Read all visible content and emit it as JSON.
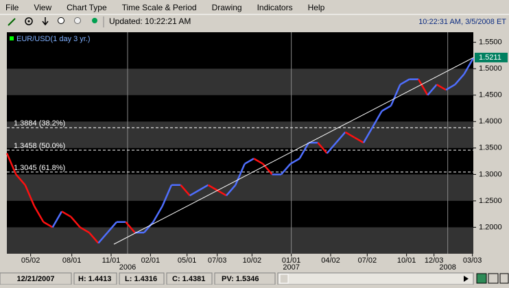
{
  "menu": [
    "File",
    "View",
    "Chart Type",
    "Time Scale & Period",
    "Drawing",
    "Indicators",
    "Help"
  ],
  "toolbar": {
    "updated": "Updated: 10:22:21 AM",
    "clock": "10:22:31 AM, 3/5/2008 ET"
  },
  "chart_data": {
    "type": "line",
    "legend": "EUR/USD(1 day 3 yr.)",
    "series": [
      {
        "name": "EUR/USD",
        "up_color": "#4f6fff",
        "down_color": "#ff1010",
        "values": [
          1.34,
          1.3,
          1.28,
          1.24,
          1.21,
          1.2,
          1.23,
          1.22,
          1.2,
          1.19,
          1.17,
          1.19,
          1.21,
          1.21,
          1.19,
          1.19,
          1.21,
          1.24,
          1.28,
          1.28,
          1.26,
          1.27,
          1.28,
          1.27,
          1.26,
          1.28,
          1.32,
          1.33,
          1.32,
          1.3,
          1.3,
          1.32,
          1.33,
          1.36,
          1.36,
          1.34,
          1.36,
          1.38,
          1.37,
          1.36,
          1.39,
          1.42,
          1.43,
          1.47,
          1.48,
          1.48,
          1.45,
          1.47,
          1.46,
          1.47,
          1.49,
          1.52
        ]
      }
    ],
    "xlim": [
      0,
      51
    ],
    "ylim": [
      1.15,
      1.569
    ],
    "yticks": [
      {
        "value": 1.2,
        "label": "1.2000"
      },
      {
        "value": 1.25,
        "label": "1.2500"
      },
      {
        "value": 1.3,
        "label": "1.3000"
      },
      {
        "value": 1.35,
        "label": "1.3500"
      },
      {
        "value": 1.4,
        "label": "1.4000"
      },
      {
        "value": 1.45,
        "label": "1.4500"
      },
      {
        "value": 1.5,
        "label": "1.5000"
      },
      {
        "value": 1.55,
        "label": "1.5500"
      }
    ],
    "xticks": [
      {
        "value": 2.6,
        "label": "05/02"
      },
      {
        "value": 7.1,
        "label": "08/01"
      },
      {
        "value": 11.4,
        "label": "11/01"
      },
      {
        "value": 15.7,
        "label": "02/01"
      },
      {
        "value": 19.7,
        "label": "05/01"
      },
      {
        "value": 23.0,
        "label": "07/03"
      },
      {
        "value": 26.8,
        "label": "10/02"
      },
      {
        "value": 31.1,
        "label": "01/01"
      },
      {
        "value": 35.4,
        "label": "04/02"
      },
      {
        "value": 39.4,
        "label": "07/02"
      },
      {
        "value": 43.7,
        "label": "10/01"
      },
      {
        "value": 46.7,
        "label": "12/03"
      },
      {
        "value": 50.9,
        "label": "03/03"
      }
    ],
    "year_ticks": [
      {
        "value": 13.2,
        "label": "2006"
      },
      {
        "value": 31.1,
        "label": "2007"
      },
      {
        "value": 48.2,
        "label": "2008"
      }
    ],
    "fib_levels": [
      {
        "value": 1.3884,
        "label": "1.3884 (38.2%)"
      },
      {
        "value": 1.3458,
        "label": "1.3458 (50.0%)"
      },
      {
        "value": 1.3045,
        "label": "1.3045 (61.8%)"
      }
    ],
    "trendline": {
      "x": [
        11.7,
        51
      ],
      "values": [
        1.168,
        1.521
      ]
    },
    "last": {
      "value": 1.5211,
      "label": "1.5211"
    }
  },
  "status": {
    "date": "12/21/2007",
    "high": "H: 1.4413",
    "low": "L: 1.4316",
    "close": "C: 1.4381",
    "pv": "PV: 1.5346"
  }
}
